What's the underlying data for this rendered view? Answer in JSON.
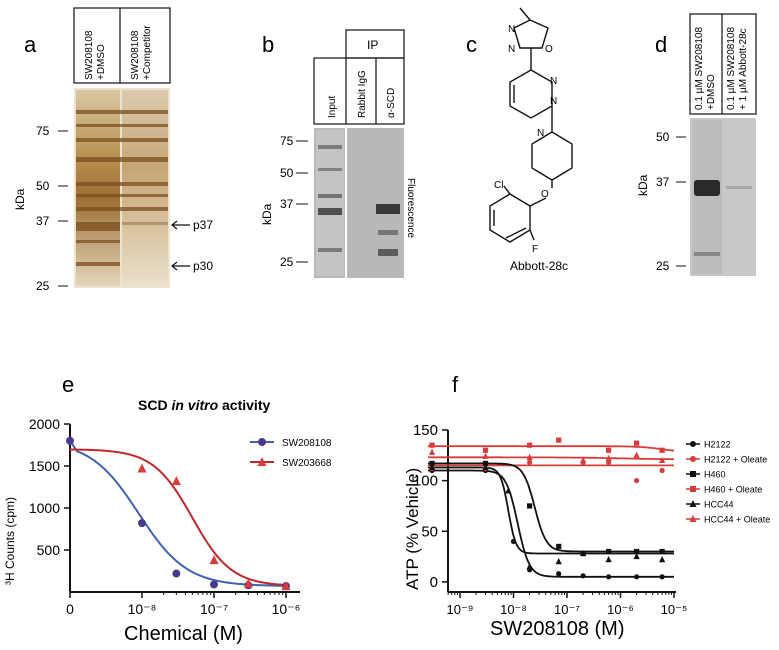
{
  "panels": {
    "a": {
      "letter": "a",
      "lanes": [
        "SW208108\n+DMSO",
        "SW208108\n+Competitor"
      ],
      "markers": [
        "75",
        "50",
        "37",
        "25"
      ],
      "unit": "kDa",
      "arrows": [
        "p37",
        "p30"
      ]
    },
    "b": {
      "letter": "b",
      "group_label": "IP",
      "lanes": [
        "Input",
        "Rabbit IgG",
        "α-SCD"
      ],
      "markers": [
        "75",
        "50",
        "37",
        "25"
      ],
      "unit": "kDa",
      "side_label": "Fluorescence"
    },
    "c": {
      "letter": "c",
      "compound": "Abbott-28c",
      "atoms": {
        "cl": "Cl",
        "f": "F",
        "o": "O",
        "n": "N"
      }
    },
    "d": {
      "letter": "d",
      "lanes": [
        "0.1 µM SW208108\n+DMSO",
        "0.1 µM SW208108\n+ 1 µM Abbott-28c"
      ],
      "markers": [
        "50",
        "37",
        "25"
      ],
      "unit": "kDa"
    },
    "e": {
      "letter": "e"
    },
    "f": {
      "letter": "f"
    }
  },
  "chart_data": [
    {
      "type": "scatter",
      "panel": "e",
      "title": "SCD in vitro activity",
      "title_parts": [
        "SCD ",
        "in vitro",
        " activity"
      ],
      "xlabel": "Chemical (M)",
      "ylabel": "³H Counts (cpm)",
      "x_scale": "log",
      "x_ticks": [
        "0",
        "10⁻⁸",
        "10⁻⁷",
        "10⁻⁶"
      ],
      "y_ticks": [
        500,
        1000,
        1500,
        2000
      ],
      "ylim": [
        0,
        2000
      ],
      "legend_position": "right",
      "series": [
        {
          "name": "SW208108",
          "color": "#4b3a8c",
          "line_color": "#3d62b0",
          "marker": "circle",
          "points": [
            {
              "x": 0,
              "y": 1800
            },
            {
              "x": 1e-08,
              "y": 820
            },
            {
              "x": 3e-08,
              "y": 220
            },
            {
              "x": 1e-07,
              "y": 90
            },
            {
              "x": 3e-07,
              "y": 80
            },
            {
              "x": 1e-06,
              "y": 70
            }
          ]
        },
        {
          "name": "SW203668",
          "color": "#d63c3c",
          "line_color": "#c0262b",
          "marker": "triangle",
          "points": [
            {
              "x": 1e-08,
              "y": 1470
            },
            {
              "x": 3e-08,
              "y": 1320
            },
            {
              "x": 1e-07,
              "y": 380
            },
            {
              "x": 3e-07,
              "y": 100
            },
            {
              "x": 1e-06,
              "y": 70
            }
          ]
        }
      ]
    },
    {
      "type": "scatter",
      "panel": "f",
      "xlabel": "SW208108 (M)",
      "ylabel": "ATP (% Vehicle)",
      "x_scale": "log",
      "x_ticks": [
        "10⁻⁹",
        "10⁻⁸",
        "10⁻⁷",
        "10⁻⁶",
        "10⁻⁵"
      ],
      "y_ticks": [
        0,
        50,
        100,
        150
      ],
      "ylim": [
        -10,
        150
      ],
      "legend_position": "right",
      "series": [
        {
          "name": "H2122",
          "color": "#111111",
          "marker": "circle",
          "points": [
            {
              "x": 3e-10,
              "y": 110
            },
            {
              "x": 3e-09,
              "y": 110
            },
            {
              "x": 1e-08,
              "y": 40
            },
            {
              "x": 2e-08,
              "y": 12
            },
            {
              "x": 7e-08,
              "y": 8
            },
            {
              "x": 2e-07,
              "y": 6
            },
            {
              "x": 6e-07,
              "y": 5
            },
            {
              "x": 2e-06,
              "y": 5
            },
            {
              "x": 6e-06,
              "y": 5
            }
          ]
        },
        {
          "name": "H2122 + Oleate",
          "color": "#d63c3c",
          "marker": "circle",
          "points": [
            {
              "x": 3e-10,
              "y": 112
            },
            {
              "x": 3e-09,
              "y": 112
            },
            {
              "x": 2e-08,
              "y": 118
            },
            {
              "x": 2e-07,
              "y": 118
            },
            {
              "x": 6e-07,
              "y": 118
            },
            {
              "x": 2e-06,
              "y": 100
            },
            {
              "x": 6e-06,
              "y": 110
            }
          ]
        },
        {
          "name": "H460",
          "color": "#111111",
          "marker": "square",
          "points": [
            {
              "x": 3e-10,
              "y": 117
            },
            {
              "x": 3e-09,
              "y": 117
            },
            {
              "x": 2e-08,
              "y": 75
            },
            {
              "x": 7e-08,
              "y": 35
            },
            {
              "x": 2e-07,
              "y": 28
            },
            {
              "x": 6e-07,
              "y": 30
            },
            {
              "x": 2e-06,
              "y": 30
            },
            {
              "x": 6e-06,
              "y": 30
            }
          ]
        },
        {
          "name": "H460 + Oleate",
          "color": "#d63c3c",
          "marker": "square",
          "points": [
            {
              "x": 3e-10,
              "y": 135
            },
            {
              "x": 3e-09,
              "y": 130
            },
            {
              "x": 2e-08,
              "y": 135
            },
            {
              "x": 7e-08,
              "y": 140
            },
            {
              "x": 6e-07,
              "y": 130
            },
            {
              "x": 2e-06,
              "y": 137
            },
            {
              "x": 6e-06,
              "y": 130
            }
          ]
        },
        {
          "name": "HCC44",
          "color": "#111111",
          "marker": "triangle",
          "points": [
            {
              "x": 3e-10,
              "y": 113
            },
            {
              "x": 3e-09,
              "y": 113
            },
            {
              "x": 8e-09,
              "y": 90
            },
            {
              "x": 2e-08,
              "y": 15
            },
            {
              "x": 7e-08,
              "y": 20
            },
            {
              "x": 2e-07,
              "y": 28
            },
            {
              "x": 6e-07,
              "y": 22
            },
            {
              "x": 2e-06,
              "y": 25
            },
            {
              "x": 6e-06,
              "y": 22
            }
          ]
        },
        {
          "name": "HCC44 + Oleate",
          "color": "#d63c3c",
          "marker": "triangle",
          "points": [
            {
              "x": 3e-10,
              "y": 128
            },
            {
              "x": 3e-09,
              "y": 124
            },
            {
              "x": 2e-08,
              "y": 123
            },
            {
              "x": 2e-07,
              "y": 120
            },
            {
              "x": 6e-07,
              "y": 122
            },
            {
              "x": 2e-06,
              "y": 125
            },
            {
              "x": 6e-06,
              "y": 120
            }
          ]
        }
      ]
    }
  ]
}
